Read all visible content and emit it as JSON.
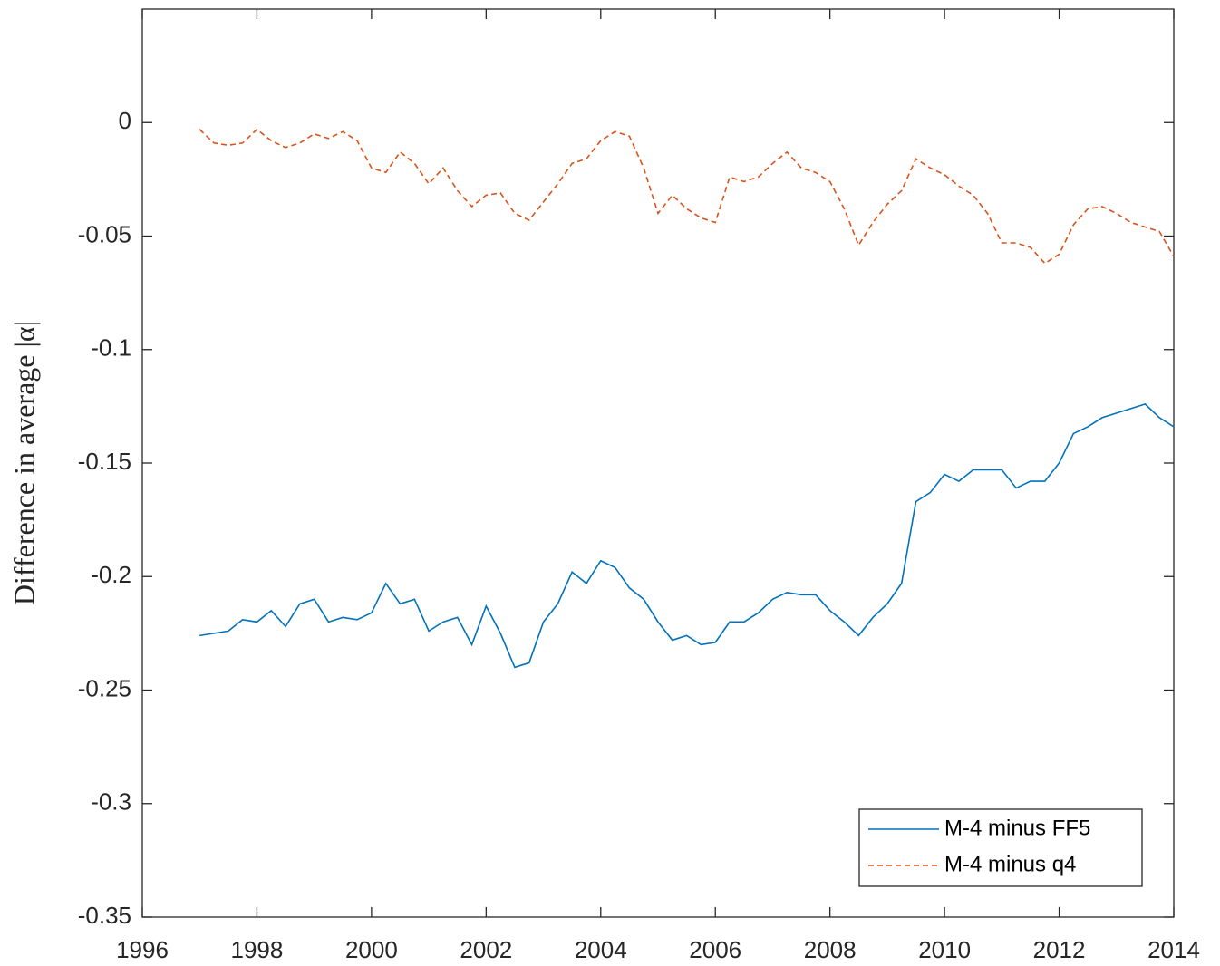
{
  "chart_data": {
    "type": "line",
    "ylabel": "Difference in average |α|",
    "x": [
      1997,
      1997.25,
      1997.5,
      1997.75,
      1998,
      1998.25,
      1998.5,
      1998.75,
      1999,
      1999.25,
      1999.5,
      1999.75,
      2000,
      2000.25,
      2000.5,
      2000.75,
      2001,
      2001.25,
      2001.5,
      2001.75,
      2002,
      2002.25,
      2002.5,
      2002.75,
      2003,
      2003.25,
      2003.5,
      2003.75,
      2004,
      2004.25,
      2004.5,
      2004.75,
      2005,
      2005.25,
      2005.5,
      2005.75,
      2006,
      2006.25,
      2006.5,
      2006.75,
      2007,
      2007.25,
      2007.5,
      2007.75,
      2008,
      2008.25,
      2008.5,
      2008.75,
      2009,
      2009.25,
      2009.5,
      2009.75,
      2010,
      2010.25,
      2010.5,
      2010.75,
      2011,
      2011.25,
      2011.5,
      2011.75,
      2012,
      2012.25,
      2012.5,
      2012.75,
      2013,
      2013.25,
      2013.5,
      2013.75,
      2014
    ],
    "series": [
      {
        "name": "M-4 minus FF5",
        "color": "#0072BD",
        "dash": false,
        "values": [
          -0.226,
          -0.225,
          -0.224,
          -0.219,
          -0.22,
          -0.215,
          -0.222,
          -0.212,
          -0.21,
          -0.22,
          -0.218,
          -0.219,
          -0.216,
          -0.203,
          -0.212,
          -0.21,
          -0.224,
          -0.22,
          -0.218,
          -0.23,
          -0.213,
          -0.225,
          -0.24,
          -0.238,
          -0.22,
          -0.212,
          -0.198,
          -0.203,
          -0.193,
          -0.196,
          -0.205,
          -0.21,
          -0.22,
          -0.228,
          -0.226,
          -0.23,
          -0.229,
          -0.22,
          -0.22,
          -0.216,
          -0.21,
          -0.207,
          -0.208,
          -0.208,
          -0.215,
          -0.22,
          -0.226,
          -0.218,
          -0.212,
          -0.203,
          -0.167,
          -0.163,
          -0.155,
          -0.158,
          -0.153,
          -0.153,
          -0.153,
          -0.161,
          -0.158,
          -0.158,
          -0.15,
          -0.137,
          -0.134,
          -0.13,
          -0.128,
          -0.126,
          -0.124,
          -0.13,
          -0.134
        ]
      },
      {
        "name": "M-4 minus q4",
        "color": "#D95319",
        "dash": true,
        "values": [
          -0.003,
          -0.009,
          -0.01,
          -0.009,
          -0.003,
          -0.008,
          -0.011,
          -0.009,
          -0.005,
          -0.007,
          -0.004,
          -0.008,
          -0.02,
          -0.022,
          -0.013,
          -0.018,
          -0.027,
          -0.02,
          -0.03,
          -0.037,
          -0.032,
          -0.031,
          -0.04,
          -0.043,
          -0.035,
          -0.027,
          -0.018,
          -0.016,
          -0.008,
          -0.004,
          -0.006,
          -0.02,
          -0.04,
          -0.032,
          -0.038,
          -0.042,
          -0.044,
          -0.024,
          -0.026,
          -0.024,
          -0.018,
          -0.013,
          -0.02,
          -0.022,
          -0.026,
          -0.038,
          -0.054,
          -0.044,
          -0.036,
          -0.03,
          -0.016,
          -0.02,
          -0.023,
          -0.028,
          -0.032,
          -0.04,
          -0.053,
          -0.053,
          -0.055,
          -0.062,
          -0.058,
          -0.045,
          -0.038,
          -0.037,
          -0.04,
          -0.044,
          -0.046,
          -0.048,
          -0.059
        ]
      }
    ],
    "xlim": [
      1996,
      2014
    ],
    "xticks": [
      1996,
      1998,
      2000,
      2002,
      2004,
      2006,
      2008,
      2010,
      2012,
      2014
    ],
    "ylim": [
      -0.35,
      0.05
    ],
    "yticks": [
      -0.35,
      -0.3,
      -0.25,
      -0.2,
      -0.15,
      -0.1,
      -0.05,
      0
    ],
    "grid": false,
    "legend": "southeast"
  }
}
